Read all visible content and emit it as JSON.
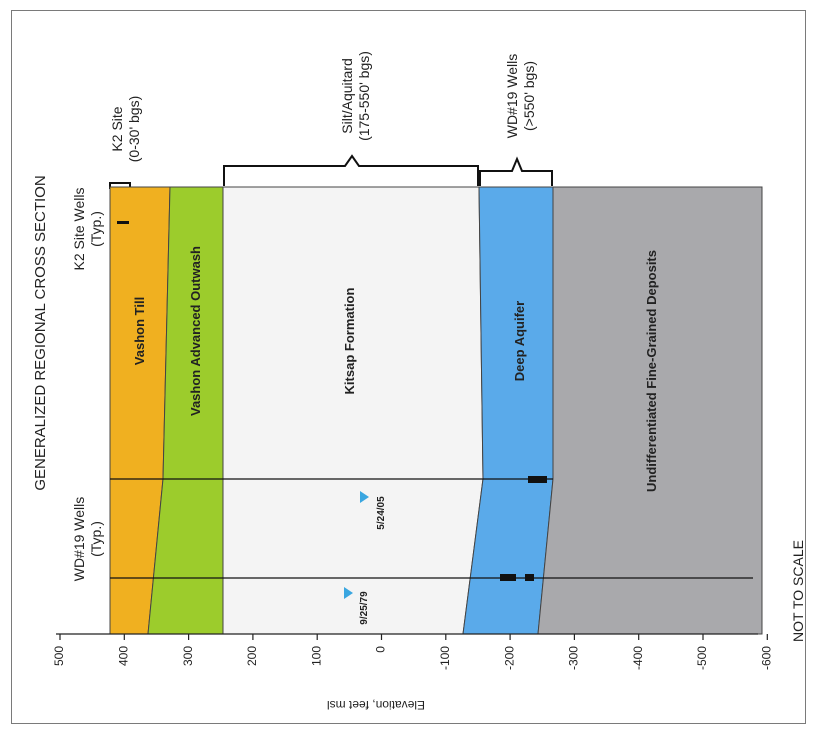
{
  "title": "GENERALIZED REGIONAL CROSS SECTION",
  "wells": {
    "k2": {
      "label_line1": "K2 Site Wells",
      "label_line2": "(Typ.)"
    },
    "wd19": {
      "label_line1": "WD#19 Wells",
      "label_line2": "(Typ.)"
    }
  },
  "brackets": [
    {
      "line1": "K2 Site",
      "line2": "(0-30' bgs)"
    },
    {
      "line1": "Silt/Aquitard",
      "line2": "(175-550' bgs)"
    },
    {
      "line1": "WD#19 Wells",
      "line2": "(>550' bgs)"
    }
  ],
  "layers": [
    {
      "name": "Vashon Till",
      "color": "#f0b020"
    },
    {
      "name": "Vashon Advanced Outwash",
      "color": "#9ccc2c"
    },
    {
      "name": "Kitsap Formation",
      "color": "#f4f4f4"
    },
    {
      "name": "Deep Aquifer",
      "color": "#5aaaea"
    },
    {
      "name": "Undifferentiated Fine-Grained Deposits",
      "color": "#a9a9ac"
    }
  ],
  "water_levels": [
    {
      "date": "5/24/05",
      "elevation": 30
    },
    {
      "date": "9/25/79",
      "elevation": 40
    }
  ],
  "axis": {
    "label": "Elevation, feet msl",
    "ticks": [
      "500",
      "400",
      "300",
      "200",
      "100",
      "0",
      "-100",
      "-200",
      "-300",
      "-400",
      "-500",
      "-600"
    ],
    "range": [
      500,
      -600
    ]
  },
  "note": "NOT TO SCALE",
  "colors": {
    "water_marker": "#3aa6e0",
    "screen": "#111111"
  }
}
